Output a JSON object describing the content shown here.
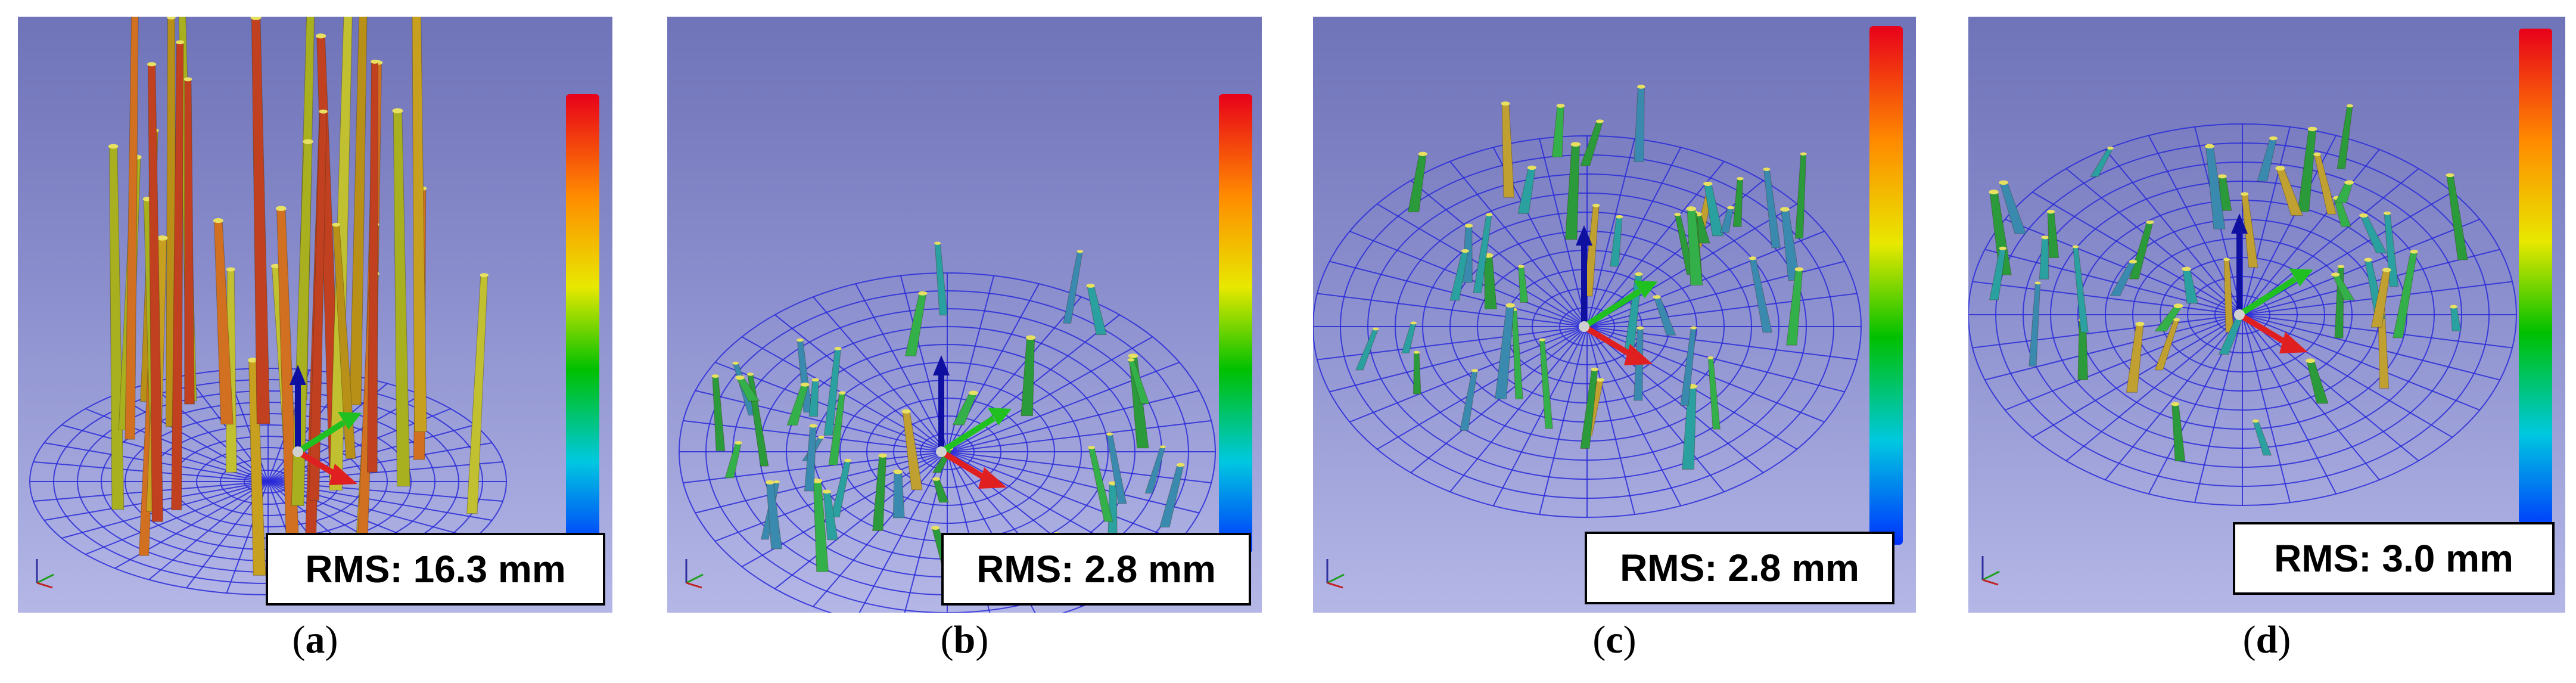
{
  "panels": [
    {
      "rms": "RMS: 16.3 mm",
      "label": "a"
    },
    {
      "rms": "RMS: 2.8 mm",
      "label": "b"
    },
    {
      "rms": "RMS: 2.8 mm",
      "label": "c"
    },
    {
      "rms": "RMS: 3.0 mm",
      "label": "d"
    }
  ],
  "colors": {
    "background_top": "#6f73b8",
    "background_bottom": "#b4b7e6",
    "grid": "#2a2ad8",
    "x_axis": "#e02020",
    "y_axis": "#20c020",
    "z_axis": "#1010a0"
  },
  "colorbar": [
    "#e8001a",
    "#ff8a00",
    "#f0e000",
    "#00c000",
    "#00c8e0",
    "#0040ff"
  ]
}
